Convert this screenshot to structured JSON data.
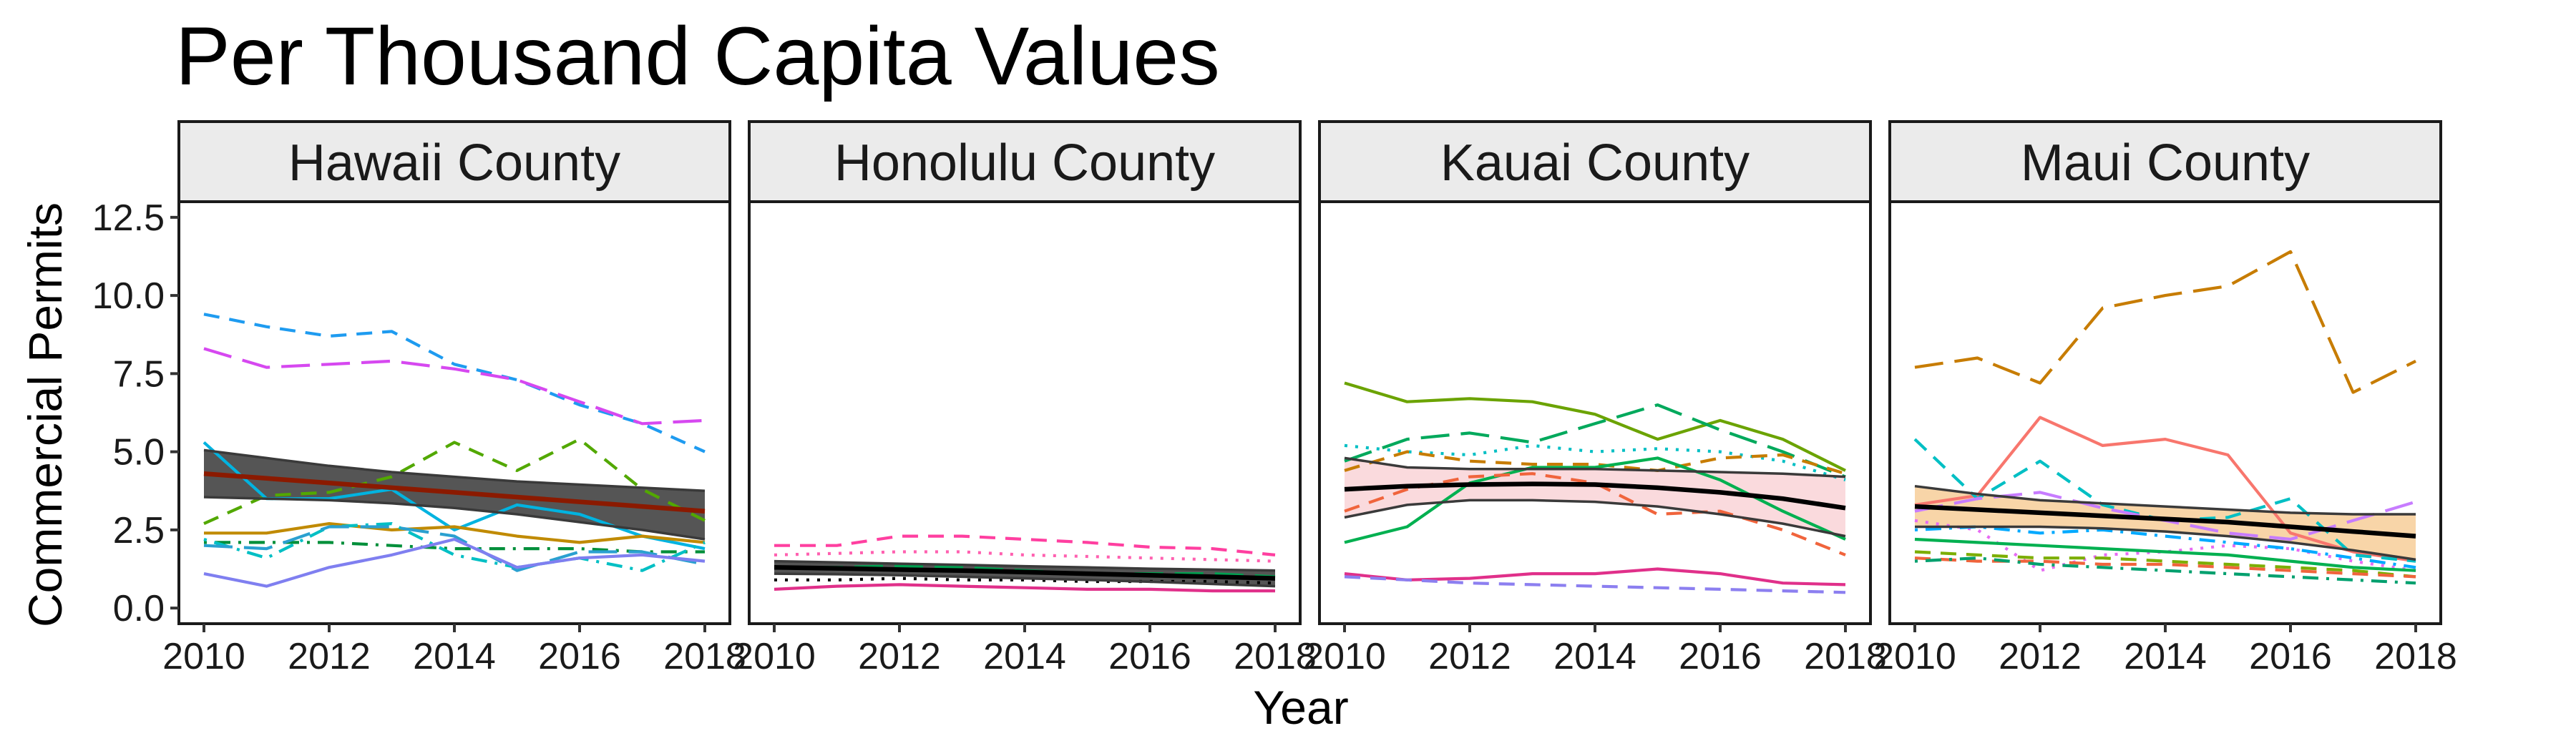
{
  "chart_data": {
    "type": "line",
    "title": "Per Thousand Capita Values",
    "xlabel": "Year",
    "ylabel": "Commercial Permits",
    "xlim": [
      2009.6,
      2018.4
    ],
    "ylim": [
      -0.5,
      13.0
    ],
    "x_ticks": [
      "2010",
      "2012",
      "2014",
      "2016",
      "2018"
    ],
    "y_ticks": [
      "0.0",
      "2.5",
      "5.0",
      "7.5",
      "10.0",
      "12.5"
    ],
    "x": [
      2010,
      2011,
      2012,
      2013,
      2014,
      2015,
      2016,
      2017,
      2018
    ],
    "panels": [
      {
        "name": "Hawaii County",
        "band_fill": "#555555",
        "trend_color": "#8B1A00",
        "trend": [
          4.3,
          4.15,
          4.0,
          3.85,
          3.7,
          3.55,
          3.4,
          3.25,
          3.1
        ],
        "lower": [
          3.55,
          3.5,
          3.45,
          3.35,
          3.2,
          3.0,
          2.75,
          2.5,
          2.2
        ],
        "upper": [
          5.05,
          4.8,
          4.55,
          4.35,
          4.2,
          4.05,
          3.95,
          3.85,
          3.75
        ],
        "series": [
          {
            "color": "#1E9BF0",
            "dash": "dashed",
            "values": [
              9.4,
              9.0,
              8.7,
              8.85,
              7.8,
              7.3,
              6.5,
              5.9,
              5.0
            ]
          },
          {
            "color": "#D648F0",
            "dash": "longdash",
            "values": [
              8.3,
              7.7,
              7.8,
              7.9,
              7.65,
              7.3,
              6.6,
              5.9,
              6.0
            ]
          },
          {
            "color": "#52A800",
            "dash": "dashed",
            "values": [
              2.7,
              3.6,
              3.7,
              4.2,
              5.3,
              4.4,
              5.4,
              3.8,
              2.8
            ]
          },
          {
            "color": "#00B3E0",
            "dash": "solid",
            "values": [
              5.3,
              3.5,
              3.5,
              3.8,
              2.5,
              3.3,
              3.0,
              2.3,
              1.9
            ]
          },
          {
            "color": "#C08A00",
            "dash": "solid",
            "values": [
              2.4,
              2.4,
              2.7,
              2.5,
              2.6,
              2.3,
              2.1,
              2.3,
              2.1
            ]
          },
          {
            "color": "#008F3A",
            "dash": "dotdash",
            "values": [
              2.1,
              2.1,
              2.1,
              2.0,
              1.9,
              1.9,
              1.9,
              1.8,
              1.8
            ]
          },
          {
            "color": "#00BFC4",
            "dash": "dotdash",
            "values": [
              2.2,
              1.6,
              2.6,
              2.7,
              1.7,
              1.3,
              1.6,
              1.2,
              2.1
            ]
          },
          {
            "color": "#2AA0D0",
            "dash": "longdash",
            "values": [
              2.0,
              1.9,
              2.6,
              2.6,
              2.3,
              1.2,
              1.8,
              1.8,
              1.4
            ]
          },
          {
            "color": "#7F7FF0",
            "dash": "solid",
            "values": [
              1.1,
              0.7,
              1.3,
              1.7,
              2.2,
              1.3,
              1.6,
              1.7,
              1.5
            ]
          }
        ]
      },
      {
        "name": "Honolulu County",
        "band_fill": "#555555",
        "trend_color": "#000000",
        "trend": [
          1.3,
          1.27,
          1.23,
          1.2,
          1.15,
          1.1,
          1.05,
          1.0,
          0.95
        ],
        "lower": [
          1.1,
          1.08,
          1.05,
          1.0,
          0.95,
          0.9,
          0.84,
          0.77,
          0.7
        ],
        "upper": [
          1.5,
          1.46,
          1.42,
          1.38,
          1.34,
          1.3,
          1.26,
          1.23,
          1.2
        ],
        "series": [
          {
            "color": "#FF3FA0",
            "dash": "dashed",
            "values": [
              2.0,
              2.0,
              2.3,
              2.3,
              2.2,
              2.1,
              1.95,
              1.9,
              1.7
            ]
          },
          {
            "color": "#FF60B0",
            "dash": "dotted",
            "values": [
              1.7,
              1.75,
              1.8,
              1.8,
              1.7,
              1.65,
              1.6,
              1.55,
              1.5
            ]
          },
          {
            "color": "#00A050",
            "dash": "longdash",
            "values": [
              1.3,
              1.3,
              1.35,
              1.3,
              1.2,
              1.1,
              1.1,
              1.1,
              1.0
            ]
          },
          {
            "color": "#000000",
            "dash": "dotted",
            "values": [
              0.9,
              0.9,
              0.95,
              0.9,
              0.9,
              0.85,
              0.85,
              0.85,
              0.8
            ]
          },
          {
            "color": "#E0308A",
            "dash": "solid",
            "values": [
              0.6,
              0.7,
              0.75,
              0.7,
              0.65,
              0.6,
              0.6,
              0.55,
              0.55
            ]
          }
        ]
      },
      {
        "name": "Kauai County",
        "band_fill": "#FADADD",
        "trend_color": "#000000",
        "trend": [
          3.8,
          3.9,
          3.95,
          3.97,
          3.95,
          3.85,
          3.7,
          3.5,
          3.2
        ],
        "lower": [
          2.9,
          3.3,
          3.45,
          3.45,
          3.4,
          3.25,
          3.0,
          2.7,
          2.3
        ],
        "upper": [
          4.8,
          4.5,
          4.45,
          4.45,
          4.45,
          4.4,
          4.35,
          4.3,
          4.2
        ],
        "series": [
          {
            "color": "#6BA300",
            "dash": "solid",
            "values": [
              7.2,
              6.6,
              6.7,
              6.6,
              6.2,
              5.4,
              6.0,
              5.4,
              4.4
            ]
          },
          {
            "color": "#00A95C",
            "dash": "longdash",
            "values": [
              4.7,
              5.4,
              5.6,
              5.3,
              5.9,
              6.5,
              5.7,
              5.0,
              4.2
            ]
          },
          {
            "color": "#00BFC4",
            "dash": "dotted",
            "values": [
              5.2,
              5.0,
              4.9,
              5.2,
              5.0,
              5.1,
              5.0,
              4.7,
              4.1
            ]
          },
          {
            "color": "#C77C00",
            "dash": "dashed",
            "values": [
              4.4,
              5.0,
              4.7,
              4.6,
              4.6,
              4.4,
              4.8,
              4.9,
              4.3
            ]
          },
          {
            "color": "#00B050",
            "dash": "solid",
            "values": [
              2.1,
              2.6,
              4.0,
              4.5,
              4.5,
              4.8,
              4.1,
              3.1,
              2.2
            ]
          },
          {
            "color": "#F0643C",
            "dash": "dashed",
            "values": [
              3.1,
              3.8,
              4.2,
              4.3,
              4.0,
              3.0,
              3.1,
              2.5,
              1.7
            ]
          },
          {
            "color": "#E0308A",
            "dash": "solid",
            "values": [
              1.1,
              0.9,
              0.95,
              1.1,
              1.1,
              1.25,
              1.1,
              0.8,
              0.75
            ]
          },
          {
            "color": "#8C7FF0",
            "dash": "dashed",
            "values": [
              1.0,
              0.9,
              0.8,
              0.75,
              0.7,
              0.65,
              0.6,
              0.55,
              0.5
            ]
          }
        ]
      },
      {
        "name": "Maui County",
        "band_fill": "#F8D5A8",
        "trend_color": "#000000",
        "trend": [
          3.25,
          3.15,
          3.05,
          2.95,
          2.85,
          2.75,
          2.6,
          2.45,
          2.3
        ],
        "lower": [
          2.6,
          2.6,
          2.6,
          2.55,
          2.45,
          2.3,
          2.1,
          1.85,
          1.55
        ],
        "upper": [
          3.9,
          3.65,
          3.45,
          3.35,
          3.25,
          3.15,
          3.05,
          3.0,
          3.0
        ],
        "series": [
          {
            "color": "#C77C00",
            "dash": "longdash",
            "values": [
              7.7,
              8.0,
              7.2,
              9.6,
              10.0,
              10.3,
              11.4,
              6.9,
              7.9
            ]
          },
          {
            "color": "#F8766D",
            "dash": "solid",
            "values": [
              3.3,
              3.6,
              6.1,
              5.2,
              5.4,
              4.9,
              2.4,
              1.8,
              1.5
            ]
          },
          {
            "color": "#00BFC4",
            "dash": "dashed",
            "values": [
              5.4,
              3.5,
              4.7,
              3.3,
              2.8,
              2.9,
              3.5,
              1.7,
              1.5
            ]
          },
          {
            "color": "#C77CFF",
            "dash": "longdash",
            "values": [
              3.1,
              3.5,
              3.7,
              3.2,
              2.8,
              2.4,
              2.2,
              2.8,
              3.4
            ]
          },
          {
            "color": "#E76BF3",
            "dash": "dotted",
            "values": [
              2.8,
              2.5,
              1.2,
              1.7,
              1.8,
              2.0,
              1.9,
              1.5,
              1.2
            ]
          },
          {
            "color": "#00A9FF",
            "dash": "dotdash",
            "values": [
              2.5,
              2.6,
              2.4,
              2.5,
              2.3,
              2.1,
              1.9,
              1.6,
              1.3
            ]
          },
          {
            "color": "#00B050",
            "dash": "solid",
            "values": [
              2.2,
              2.1,
              2.0,
              1.9,
              1.8,
              1.7,
              1.5,
              1.3,
              1.2
            ]
          },
          {
            "color": "#7CAE00",
            "dash": "dashed",
            "values": [
              1.8,
              1.7,
              1.6,
              1.6,
              1.5,
              1.4,
              1.3,
              1.2,
              1.0
            ]
          },
          {
            "color": "#F0643C",
            "dash": "dashed",
            "values": [
              1.6,
              1.5,
              1.5,
              1.4,
              1.4,
              1.3,
              1.2,
              1.1,
              1.0
            ]
          },
          {
            "color": "#00A06E",
            "dash": "dotdash",
            "values": [
              1.5,
              1.6,
              1.4,
              1.3,
              1.2,
              1.1,
              1.0,
              0.9,
              0.8
            ]
          }
        ]
      }
    ]
  }
}
